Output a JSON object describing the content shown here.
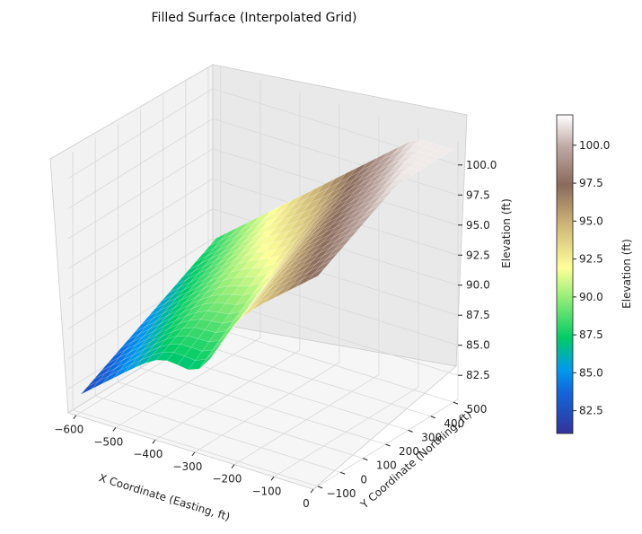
{
  "chart_data": {
    "type": "surface3d",
    "title": "Filled Surface (Interpolated Grid)",
    "xlabel": "X Coordinate (Easting, ft)",
    "ylabel": "Y Coordinate (Northing, ft)",
    "zlabel": "Elevation (ft)",
    "colorbar_label": "Elevation (ft)",
    "colormap": "terrain",
    "xlim": [
      -620,
      0
    ],
    "ylim": [
      -120,
      520
    ],
    "zlim": [
      80.5,
      102.0
    ],
    "x_ticks": [
      -600,
      -500,
      -400,
      -300,
      -200,
      -100,
      0
    ],
    "x_tick_labels": [
      "−600",
      "−500",
      "−400",
      "−300",
      "−200",
      "−100",
      "0"
    ],
    "y_ticks": [
      -100,
      0,
      100,
      200,
      300,
      400,
      500
    ],
    "y_tick_labels": [
      "−100",
      "0",
      "100",
      "200",
      "300",
      "400",
      "500"
    ],
    "z_ticks": [
      82.5,
      85.0,
      87.5,
      90.0,
      92.5,
      95.0,
      97.5,
      100.0
    ],
    "z_tick_labels": [
      "82.5",
      "85.0",
      "87.5",
      "90.0",
      "92.5",
      "95.0",
      "97.5",
      "100.0"
    ],
    "colorbar_ticks": [
      82.5,
      85.0,
      87.5,
      90.0,
      92.5,
      95.0,
      97.5,
      100.0
    ],
    "colorbar_tick_labels": [
      "82.5",
      "85.0",
      "87.5",
      "90.0",
      "92.5",
      "95.0",
      "97.5",
      "100.0"
    ],
    "colorbar_range": [
      81.0,
      102.0
    ],
    "grid": true
  }
}
